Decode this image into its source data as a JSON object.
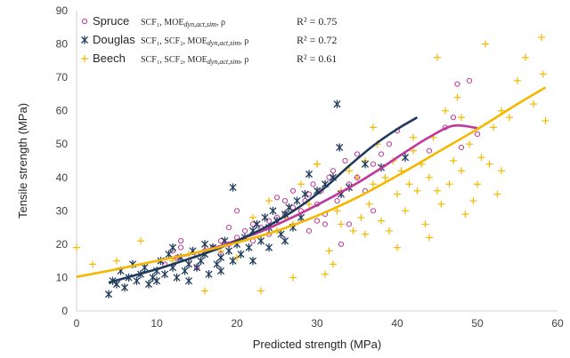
{
  "chart_data": {
    "type": "scatter",
    "xlabel": "Predicted strength (MPa)",
    "ylabel": "Tensile strength (MPa)",
    "xlim": [
      0,
      60
    ],
    "ylim": [
      0,
      90
    ],
    "xticks": [
      "0",
      "10",
      "20",
      "30",
      "40",
      "50",
      "60"
    ],
    "yticks": [
      "0",
      "10",
      "20",
      "30",
      "40",
      "50",
      "60",
      "70",
      "80",
      "90"
    ],
    "grid": false,
    "legend_position": "top-left",
    "series": [
      {
        "name": "Spruce",
        "formula": "SCF₁, MOE",
        "formula_sub": "dyn,act,sim",
        "formula_tail": ", ρ",
        "r2": "R² = 0.75",
        "marker": "circle",
        "color": "#c0389b",
        "points": [
          [
            11,
            14
          ],
          [
            12,
            18
          ],
          [
            12.5,
            16
          ],
          [
            13,
            19
          ],
          [
            14,
            15
          ],
          [
            15,
            17
          ],
          [
            16,
            18
          ],
          [
            17,
            19
          ],
          [
            18,
            21
          ],
          [
            19,
            20
          ],
          [
            20,
            22
          ],
          [
            21,
            24
          ],
          [
            22,
            26
          ],
          [
            23,
            25
          ],
          [
            24,
            27
          ],
          [
            25,
            28
          ],
          [
            26,
            29
          ],
          [
            27,
            31
          ],
          [
            28,
            30
          ],
          [
            28.5,
            33
          ],
          [
            29,
            35
          ],
          [
            29.5,
            38
          ],
          [
            30,
            27
          ],
          [
            30.5,
            36
          ],
          [
            31,
            26
          ],
          [
            31.5,
            40
          ],
          [
            32,
            42
          ],
          [
            32.5,
            33
          ],
          [
            33,
            20
          ],
          [
            33.5,
            45
          ],
          [
            34,
            38
          ],
          [
            35,
            40
          ],
          [
            36,
            36
          ],
          [
            37,
            44
          ],
          [
            38,
            47
          ],
          [
            39,
            50
          ],
          [
            40,
            54
          ],
          [
            44,
            48
          ],
          [
            46,
            55
          ],
          [
            47,
            58
          ],
          [
            47.5,
            68
          ],
          [
            48,
            49
          ],
          [
            49,
            69
          ],
          [
            50,
            53
          ],
          [
            20,
            30
          ],
          [
            24,
            23
          ],
          [
            26,
            33
          ],
          [
            27,
            36
          ],
          [
            29,
            24
          ],
          [
            30,
            32
          ],
          [
            34,
            26
          ],
          [
            35,
            47
          ],
          [
            37,
            30
          ],
          [
            22,
            21
          ],
          [
            18,
            17
          ],
          [
            15,
            13
          ],
          [
            13,
            21
          ],
          [
            19,
            25
          ],
          [
            25,
            34
          ],
          [
            31,
            29
          ]
        ],
        "trend": [
          [
            12,
            15.8
          ],
          [
            15,
            17.5
          ],
          [
            18,
            19.5
          ],
          [
            20,
            21.2
          ],
          [
            23,
            23.8
          ],
          [
            26,
            27
          ],
          [
            29,
            30.5
          ],
          [
            32,
            34.3
          ],
          [
            35,
            38.3
          ],
          [
            38,
            42.8
          ],
          [
            41,
            47.6
          ],
          [
            44,
            52.1
          ],
          [
            47,
            55.5
          ],
          [
            50,
            54.8
          ]
        ]
      },
      {
        "name": "Douglas",
        "formula": "SCF₁, SCF₂, MOE",
        "formula_sub": "dyn,act,sim",
        "formula_tail": ", ρ",
        "r2": "R² = 0.72",
        "marker": "asterisk",
        "color": "#1f3b5c",
        "points": [
          [
            4,
            5
          ],
          [
            4.5,
            9
          ],
          [
            5,
            8
          ],
          [
            5.5,
            12
          ],
          [
            6,
            7
          ],
          [
            6.5,
            10
          ],
          [
            7,
            14
          ],
          [
            7.5,
            9
          ],
          [
            8,
            11
          ],
          [
            8.5,
            13
          ],
          [
            9,
            8
          ],
          [
            9.5,
            10
          ],
          [
            10,
            12
          ],
          [
            10.5,
            15
          ],
          [
            11,
            11
          ],
          [
            11.5,
            17
          ],
          [
            12,
            13
          ],
          [
            12.5,
            10
          ],
          [
            13,
            16
          ],
          [
            13.5,
            12
          ],
          [
            14,
            14
          ],
          [
            14.5,
            18
          ],
          [
            15,
            13
          ],
          [
            15.5,
            15
          ],
          [
            16,
            17
          ],
          [
            16.5,
            11
          ],
          [
            17,
            19
          ],
          [
            17.5,
            14
          ],
          [
            18,
            16
          ],
          [
            18.5,
            21
          ],
          [
            19,
            18
          ],
          [
            19.5,
            15
          ],
          [
            20,
            20
          ],
          [
            20.5,
            17
          ],
          [
            21,
            22
          ],
          [
            21.5,
            19
          ],
          [
            22,
            24
          ],
          [
            22.5,
            26
          ],
          [
            23,
            21
          ],
          [
            23.5,
            28
          ],
          [
            24,
            25
          ],
          [
            24.5,
            30
          ],
          [
            25,
            27
          ],
          [
            25.5,
            23
          ],
          [
            26,
            29
          ],
          [
            26.5,
            31
          ],
          [
            27,
            25
          ],
          [
            27.5,
            33
          ],
          [
            28,
            28
          ],
          [
            28.5,
            35
          ],
          [
            29,
            41
          ],
          [
            30,
            36
          ],
          [
            31,
            38
          ],
          [
            32,
            40
          ],
          [
            32.5,
            62
          ],
          [
            32.8,
            49
          ],
          [
            33,
            35
          ],
          [
            34,
            37
          ],
          [
            36,
            44
          ],
          [
            38,
            43
          ],
          [
            41,
            46
          ],
          [
            19.5,
            37
          ],
          [
            24,
            19
          ],
          [
            26,
            21
          ],
          [
            22,
            15
          ],
          [
            18,
            12
          ],
          [
            16,
            20
          ],
          [
            14,
            9
          ],
          [
            12,
            19
          ],
          [
            10,
            9
          ]
        ],
        "trend": [
          [
            4,
            8.5
          ],
          [
            7,
            10.5
          ],
          [
            10,
            12.5
          ],
          [
            13,
            14.8
          ],
          [
            16,
            17.2
          ],
          [
            19,
            20
          ],
          [
            22,
            23.2
          ],
          [
            25,
            27
          ],
          [
            28,
            31.5
          ],
          [
            31,
            37
          ],
          [
            34,
            43.5
          ],
          [
            37,
            49.5
          ],
          [
            40,
            54.5
          ],
          [
            42.5,
            58
          ]
        ]
      },
      {
        "name": "Beech",
        "formula": "SCF₁, SCF₂, MOE",
        "formula_sub": "dyn,act,sim",
        "formula_tail": ", ρ",
        "r2": "R² = 0.61",
        "marker": "plus",
        "color": "#f5b800",
        "points": [
          [
            0,
            19
          ],
          [
            2,
            14
          ],
          [
            5,
            15
          ],
          [
            8,
            21
          ],
          [
            12,
            15
          ],
          [
            14,
            17
          ],
          [
            16,
            6
          ],
          [
            18,
            18
          ],
          [
            20,
            16
          ],
          [
            22,
            28
          ],
          [
            23,
            6
          ],
          [
            25,
            24
          ],
          [
            26,
            28
          ],
          [
            27,
            10
          ],
          [
            28,
            38
          ],
          [
            29,
            32
          ],
          [
            30,
            44
          ],
          [
            31,
            11
          ],
          [
            31.5,
            18
          ],
          [
            32,
            14
          ],
          [
            32.5,
            30
          ],
          [
            33,
            36
          ],
          [
            34,
            42
          ],
          [
            34.5,
            24
          ],
          [
            35,
            40
          ],
          [
            35.5,
            28
          ],
          [
            36,
            45
          ],
          [
            36.5,
            32
          ],
          [
            37,
            38
          ],
          [
            37.5,
            50
          ],
          [
            38,
            27
          ],
          [
            38.5,
            40
          ],
          [
            39,
            24
          ],
          [
            39.5,
            45
          ],
          [
            40,
            35
          ],
          [
            40.5,
            42
          ],
          [
            41,
            30
          ],
          [
            41.5,
            38
          ],
          [
            42,
            48
          ],
          [
            42.5,
            36
          ],
          [
            43,
            44
          ],
          [
            43.5,
            26
          ],
          [
            44,
            40
          ],
          [
            44.5,
            52
          ],
          [
            45,
            36
          ],
          [
            45.5,
            32
          ],
          [
            46,
            60
          ],
          [
            46.5,
            38
          ],
          [
            47,
            45
          ],
          [
            47.5,
            64
          ],
          [
            48,
            42
          ],
          [
            48.5,
            29
          ],
          [
            49,
            50
          ],
          [
            49.5,
            33
          ],
          [
            50,
            38
          ],
          [
            50.5,
            46
          ],
          [
            51,
            80
          ],
          [
            51.5,
            44
          ],
          [
            52,
            55
          ],
          [
            52.5,
            35
          ],
          [
            53,
            60
          ],
          [
            54,
            58
          ],
          [
            55,
            69
          ],
          [
            56,
            76
          ],
          [
            57,
            62
          ],
          [
            58,
            82
          ],
          [
            58.2,
            71
          ],
          [
            58.5,
            57
          ],
          [
            45,
            76
          ],
          [
            30,
            44
          ],
          [
            27,
            26
          ],
          [
            24,
            33
          ],
          [
            33,
            26
          ],
          [
            36,
            23
          ],
          [
            42,
            52
          ],
          [
            48,
            58
          ],
          [
            53,
            42
          ],
          [
            44,
            22
          ],
          [
            40,
            19
          ],
          [
            37,
            55
          ]
        ],
        "trend": [
          [
            0,
            10.2
          ],
          [
            5,
            12.5
          ],
          [
            10,
            15
          ],
          [
            15,
            17.5
          ],
          [
            20,
            20.5
          ],
          [
            25,
            24
          ],
          [
            30,
            28.5
          ],
          [
            35,
            34
          ],
          [
            40,
            40.5
          ],
          [
            45,
            47.5
          ],
          [
            50,
            54.5
          ],
          [
            55,
            62
          ],
          [
            58.5,
            67
          ]
        ]
      }
    ]
  }
}
